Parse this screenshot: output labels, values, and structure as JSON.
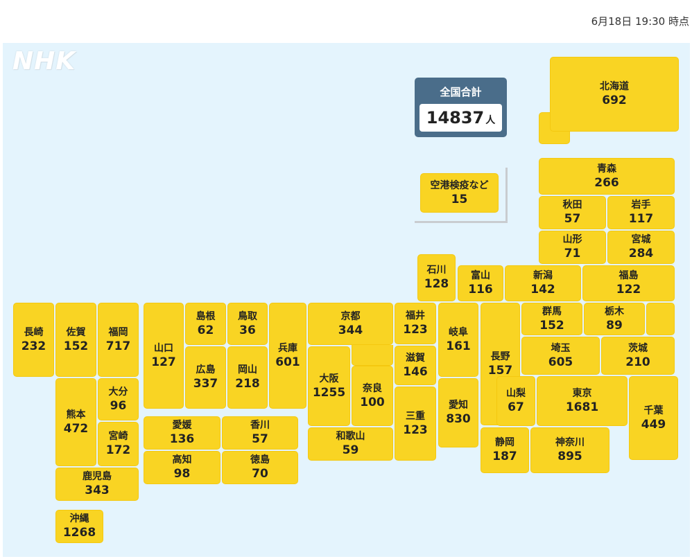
{
  "timestamp": "6月18日 19:30 時点",
  "logo": "NHK",
  "total": {
    "title": "全国合計",
    "value": "14837",
    "unit": "人"
  },
  "airport": {
    "name": "空港検疫など",
    "value": "15"
  },
  "prefectures": {
    "hokkaido": {
      "name": "北海道",
      "value": "692"
    },
    "aomori": {
      "name": "青森",
      "value": "266"
    },
    "akita": {
      "name": "秋田",
      "value": "57"
    },
    "iwate": {
      "name": "岩手",
      "value": "117"
    },
    "yamagata": {
      "name": "山形",
      "value": "71"
    },
    "miyagi": {
      "name": "宮城",
      "value": "284"
    },
    "ishikawa": {
      "name": "石川",
      "value": "128"
    },
    "toyama": {
      "name": "富山",
      "value": "116"
    },
    "niigata": {
      "name": "新潟",
      "value": "142"
    },
    "fukushima": {
      "name": "福島",
      "value": "122"
    },
    "gunma": {
      "name": "群馬",
      "value": "152"
    },
    "tochigi": {
      "name": "栃木",
      "value": "89"
    },
    "saitama": {
      "name": "埼玉",
      "value": "605"
    },
    "ibaraki": {
      "name": "茨城",
      "value": "210"
    },
    "nagasaki": {
      "name": "長崎",
      "value": "232"
    },
    "saga": {
      "name": "佐賀",
      "value": "152"
    },
    "fukuoka": {
      "name": "福岡",
      "value": "717"
    },
    "yamaguchi": {
      "name": "山口",
      "value": "127"
    },
    "shimane": {
      "name": "島根",
      "value": "62"
    },
    "tottori": {
      "name": "鳥取",
      "value": "36"
    },
    "hyogo": {
      "name": "兵庫",
      "value": "601"
    },
    "kyoto": {
      "name": "京都",
      "value": "344"
    },
    "fukui": {
      "name": "福井",
      "value": "123"
    },
    "gifu": {
      "name": "岐阜",
      "value": "161"
    },
    "nagano": {
      "name": "長野",
      "value": "157"
    },
    "hiroshima": {
      "name": "広島",
      "value": "337"
    },
    "okayama": {
      "name": "岡山",
      "value": "218"
    },
    "osaka": {
      "name": "大阪",
      "value": "1255"
    },
    "nara": {
      "name": "奈良",
      "value": "100"
    },
    "shiga": {
      "name": "滋賀",
      "value": "146"
    },
    "aichi": {
      "name": "愛知",
      "value": "830"
    },
    "mie": {
      "name": "三重",
      "value": "123"
    },
    "yamanashi": {
      "name": "山梨",
      "value": "67"
    },
    "tokyo": {
      "name": "東京",
      "value": "1681"
    },
    "chiba": {
      "name": "千葉",
      "value": "449"
    },
    "kumamoto": {
      "name": "熊本",
      "value": "472"
    },
    "oita": {
      "name": "大分",
      "value": "96"
    },
    "miyazaki": {
      "name": "宮崎",
      "value": "172"
    },
    "ehime": {
      "name": "愛媛",
      "value": "136"
    },
    "kagawa": {
      "name": "香川",
      "value": "57"
    },
    "kochi": {
      "name": "高知",
      "value": "98"
    },
    "tokushima": {
      "name": "徳島",
      "value": "70"
    },
    "wakayama": {
      "name": "和歌山",
      "value": "59"
    },
    "shizuoka": {
      "name": "静岡",
      "value": "187"
    },
    "kanagawa": {
      "name": "神奈川",
      "value": "895"
    },
    "kagoshima": {
      "name": "鹿児島",
      "value": "343"
    },
    "okinawa": {
      "name": "沖縄",
      "value": "1268"
    }
  }
}
